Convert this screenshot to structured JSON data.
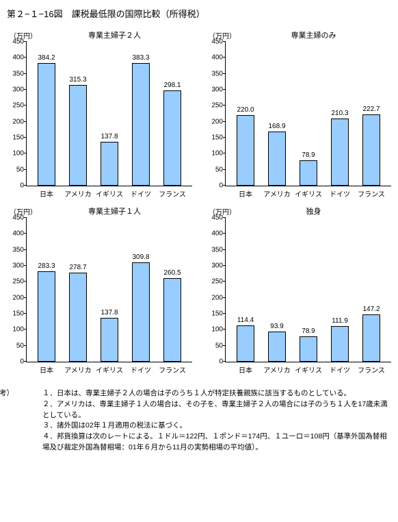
{
  "title": "第２−１−16図　課税最低限の国際比較（所得税）",
  "unit_label": "（万円）",
  "categories": [
    "日本",
    "アメリカ",
    "イギリス",
    "ドイツ",
    "フランス"
  ],
  "bar_color": "#99ccff",
  "bar_border": "#000000",
  "ylim": [
    0,
    450
  ],
  "ytick_step": 50,
  "charts": [
    {
      "title": "専業主婦子２人",
      "values": [
        384.2,
        315.3,
        137.8,
        383.3,
        298.1
      ]
    },
    {
      "title": "専業主婦のみ",
      "values": [
        220.0,
        168.9,
        78.9,
        210.3,
        222.7
      ]
    },
    {
      "title": "専業主婦子１人",
      "values": [
        283.3,
        278.7,
        137.8,
        309.8,
        260.5
      ]
    },
    {
      "title": "独身",
      "values": [
        114.4,
        93.9,
        78.9,
        111.9,
        147.2
      ]
    }
  ],
  "notes_head": "（備考）",
  "notes": [
    "１．日本は、専業主婦子２人の場合は子のうち１人が特定扶養親族に該当するものとしている。",
    "２．アメリカは、専業主婦子１人の場合は、その子を、専業主婦子２人の場合には子のうち１人を17歳未満としている。",
    "３．諸外国は02年１月適用の税法に基づく。",
    "４．邦貨換算は次のレートによる。１ドル＝122円、１ポンド＝174円、１ユーロ＝108円（基準外国為替相場及び裁定外国為替相場：01年６月から11月の実勢相場の平均値）。"
  ]
}
